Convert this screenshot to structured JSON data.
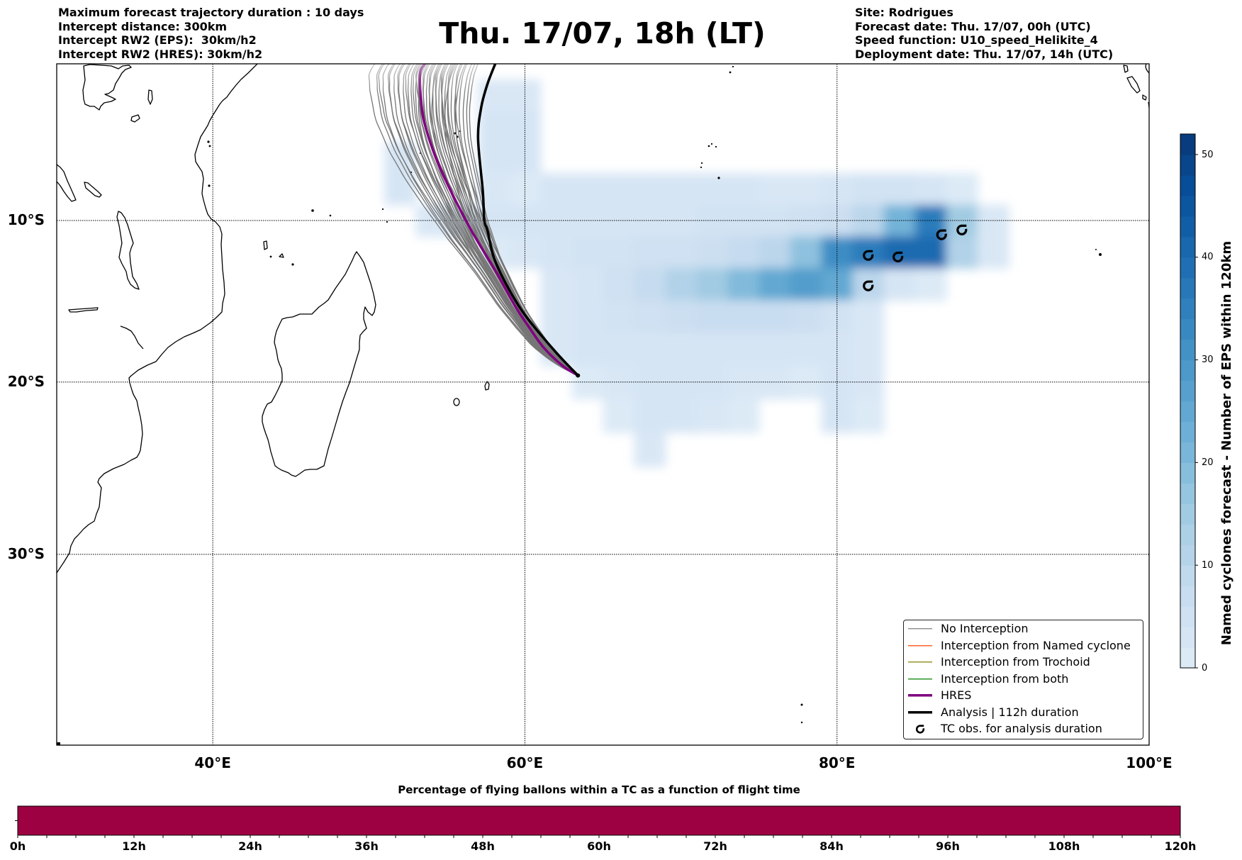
{
  "header": {
    "left_lines": [
      "Maximum forecast trajectory duration : 10 days",
      "Intercept distance: 300km",
      "Intercept RW2 (EPS):  30km/h2",
      "Intercept RW2 (HRES): 30km/h2"
    ],
    "title": "Thu. 17/07, 18h (LT)",
    "right_lines": [
      "Site: Rodrigues",
      "Forecast date: Thu. 17/07, 00h (UTC)",
      "Speed function: U10_speed_Helikite_4",
      "Deployment date: Thu. 17/07, 14h (UTC)"
    ]
  },
  "map": {
    "extent": {
      "lon": [
        30,
        100
      ],
      "lat": [
        -40,
        0
      ]
    },
    "lon_ticks": [
      {
        "value": 40,
        "label": "40°E"
      },
      {
        "value": 60,
        "label": "60°E"
      },
      {
        "value": 80,
        "label": "80°E"
      },
      {
        "value": 100,
        "label": "100°E"
      }
    ],
    "lat_ticks": [
      {
        "value": -10,
        "label": "10°S"
      },
      {
        "value": -20,
        "label": "20°S"
      },
      {
        "value": -30,
        "label": "30°S"
      }
    ],
    "launch_site": {
      "lon": 63.4,
      "lat": -19.6
    },
    "hres_track": [
      [
        63.4,
        -19.6
      ],
      [
        62.4,
        -19.0
      ],
      [
        61.2,
        -17.9
      ],
      [
        60.3,
        -16.7
      ],
      [
        59.4,
        -15.4
      ],
      [
        58.2,
        -13.3
      ],
      [
        56.9,
        -11.2
      ],
      [
        55.9,
        -9.4
      ],
      [
        54.9,
        -7.4
      ],
      [
        54.1,
        -5.5
      ],
      [
        53.5,
        -3.5
      ],
      [
        53.3,
        -1.7
      ],
      [
        53.3,
        -0.5
      ],
      [
        53.6,
        0.0
      ]
    ],
    "analysis_track": [
      [
        63.4,
        -19.6
      ],
      [
        61.9,
        -18.1
      ],
      [
        60.0,
        -15.9
      ],
      [
        58.8,
        -14.0
      ],
      [
        58.0,
        -12.3
      ],
      [
        57.6,
        -10.6
      ],
      [
        57.4,
        -10.0
      ],
      [
        57.3,
        -8.1
      ],
      [
        57.0,
        -4.8
      ],
      [
        57.2,
        -2.8
      ],
      [
        57.6,
        -1.3
      ],
      [
        58.1,
        0.0
      ]
    ],
    "eps_members_lon_at_10S_and_0": [
      [
        54.2,
        50.4
      ],
      [
        54.4,
        50.9
      ],
      [
        54.5,
        51.3
      ],
      [
        54.7,
        51.0
      ],
      [
        54.8,
        51.7
      ],
      [
        54.9,
        52.0
      ],
      [
        55.0,
        51.6
      ],
      [
        55.1,
        52.3
      ],
      [
        55.2,
        52.6
      ],
      [
        55.3,
        52.2
      ],
      [
        55.4,
        52.9
      ],
      [
        55.5,
        53.1
      ],
      [
        55.6,
        52.7
      ],
      [
        55.6,
        53.4
      ],
      [
        55.7,
        53.2
      ],
      [
        55.8,
        53.6
      ],
      [
        55.9,
        53.9
      ],
      [
        56.0,
        53.5
      ],
      [
        56.0,
        54.1
      ],
      [
        56.1,
        54.3
      ],
      [
        56.2,
        53.8
      ],
      [
        56.3,
        54.5
      ],
      [
        56.4,
        54.7
      ],
      [
        56.4,
        54.2
      ],
      [
        56.5,
        54.9
      ],
      [
        56.6,
        55.1
      ],
      [
        56.7,
        54.6
      ],
      [
        56.7,
        55.3
      ],
      [
        56.8,
        55.5
      ],
      [
        56.9,
        55.0
      ],
      [
        57.0,
        55.7
      ],
      [
        57.0,
        56.0
      ],
      [
        57.1,
        55.4
      ],
      [
        57.2,
        56.3
      ],
      [
        57.3,
        56.6
      ],
      [
        57.4,
        55.9
      ],
      [
        57.5,
        56.8
      ],
      [
        57.6,
        57.0
      ],
      [
        56.5,
        53.3
      ],
      [
        55.9,
        54.6
      ],
      [
        57.2,
        54.9
      ],
      [
        56.2,
        55.6
      ],
      [
        55.4,
        53.7
      ],
      [
        56.8,
        56.2
      ]
    ],
    "tc_observations": [
      [
        82.0,
        -12.2
      ],
      [
        83.9,
        -12.3
      ],
      [
        86.7,
        -10.9
      ],
      [
        88.0,
        -10.6
      ],
      [
        82.0,
        -14.1
      ]
    ],
    "density_eps_count": {
      "lon_start": 50,
      "lon_step": 2,
      "lat_start": 0,
      "lat_step": -2,
      "rows": [
        [
          0,
          0,
          0,
          0,
          0,
          0,
          0,
          0,
          0,
          0,
          0,
          0,
          0,
          0,
          0,
          0,
          0,
          0,
          0,
          0,
          0
        ],
        [
          0,
          0,
          0,
          0,
          2,
          2,
          0,
          0,
          0,
          0,
          0,
          0,
          0,
          0,
          0,
          0,
          0,
          0,
          0,
          0,
          0
        ],
        [
          0,
          0,
          0,
          0,
          3,
          3,
          0,
          0,
          0,
          0,
          0,
          0,
          0,
          0,
          0,
          0,
          0,
          0,
          0,
          0,
          0
        ],
        [
          0,
          3,
          0,
          0,
          3,
          3,
          0,
          0,
          0,
          0,
          0,
          0,
          0,
          0,
          0,
          0,
          0,
          0,
          0,
          0,
          0
        ],
        [
          0,
          3,
          0,
          0,
          2,
          1,
          3,
          3,
          3,
          3,
          3,
          3,
          3,
          2,
          2,
          3,
          4,
          4,
          3,
          1,
          0
        ],
        [
          0,
          0,
          2,
          3,
          3,
          3,
          3,
          3,
          3,
          3,
          3,
          4,
          4,
          4,
          5,
          6,
          10,
          22,
          36,
          15,
          2
        ],
        [
          0,
          0,
          0,
          0,
          1,
          2,
          3,
          4,
          4,
          5,
          5,
          6,
          8,
          10,
          18,
          32,
          36,
          40,
          40,
          12,
          2
        ],
        [
          0,
          0,
          0,
          0,
          0,
          0,
          2,
          3,
          5,
          8,
          12,
          15,
          20,
          25,
          28,
          25,
          10,
          3,
          1,
          0,
          0
        ],
        [
          0,
          0,
          0,
          0,
          0,
          0,
          2,
          3,
          4,
          5,
          6,
          7,
          7,
          7,
          6,
          4,
          2,
          0,
          0,
          0,
          0
        ],
        [
          0,
          0,
          0,
          0,
          0,
          0,
          2,
          3,
          3,
          3,
          3,
          3,
          3,
          3,
          3,
          3,
          2,
          0,
          0,
          0,
          0
        ],
        [
          0,
          0,
          0,
          0,
          0,
          0,
          0,
          1,
          2,
          3,
          3,
          3,
          2,
          2,
          1,
          3,
          2,
          0,
          0,
          0,
          0
        ],
        [
          0,
          0,
          0,
          0,
          0,
          0,
          0,
          0,
          1,
          3,
          3,
          2,
          1,
          0,
          0,
          3,
          1,
          0,
          0,
          0,
          0
        ],
        [
          0,
          0,
          0,
          0,
          0,
          0,
          0,
          0,
          0,
          2,
          0,
          0,
          0,
          0,
          0,
          0,
          0,
          0,
          0,
          0,
          0
        ]
      ]
    }
  },
  "legend": {
    "items": [
      {
        "label": "No Interception",
        "color": "#7f7f7f"
      },
      {
        "label": "Interception from Named cyclone",
        "color": "#ff4500"
      },
      {
        "label": "Interception from Trochoid",
        "color": "#808000"
      },
      {
        "label": "Interception from both",
        "color": "#008000"
      },
      {
        "label": "HRES",
        "color": "#800080"
      },
      {
        "label": "Analysis | 112h duration",
        "color": "#000000"
      },
      {
        "label": "TC obs. for analysis duration",
        "color": "#000000"
      }
    ]
  },
  "colorbar": {
    "label": "Named cyclones forecast - Number of EPS within 120km",
    "min": 0,
    "max": 52,
    "level_step": 2,
    "ticks": [
      0,
      10,
      20,
      30,
      40,
      50
    ],
    "tick_labels": [
      "0",
      "10",
      "20",
      "30",
      "40",
      "50"
    ]
  },
  "flight_time_bar": {
    "title": "Percentage of flying ballons within a TC as a function of flight time",
    "hours_max": 120,
    "minor_tick_hours": 3,
    "tick_labels": [
      {
        "hours": 0,
        "label": "0h"
      },
      {
        "hours": 12,
        "label": "12h"
      },
      {
        "hours": 24,
        "label": "24h"
      },
      {
        "hours": 36,
        "label": "36h"
      },
      {
        "hours": 48,
        "label": "48h"
      },
      {
        "hours": 60,
        "label": "60h"
      },
      {
        "hours": 72,
        "label": "72h"
      },
      {
        "hours": 84,
        "label": "84h"
      },
      {
        "hours": 96,
        "label": "96h"
      },
      {
        "hours": 108,
        "label": "108h"
      },
      {
        "hours": 120,
        "label": "120h"
      }
    ],
    "segments": [
      {
        "from_h": 0,
        "to_h": 120,
        "color": "#9e0142"
      }
    ]
  },
  "colors": {
    "colormap_ramp": [
      "#f7fbff",
      "#deebf7",
      "#c6dbef",
      "#9ecae1",
      "#6baed6",
      "#4292c6",
      "#2171b5",
      "#08519c",
      "#08306b"
    ],
    "eps_member": "#767676",
    "hres": "#800080",
    "analysis": "#000000",
    "gridline": "#000000",
    "coastline": "#000000"
  }
}
